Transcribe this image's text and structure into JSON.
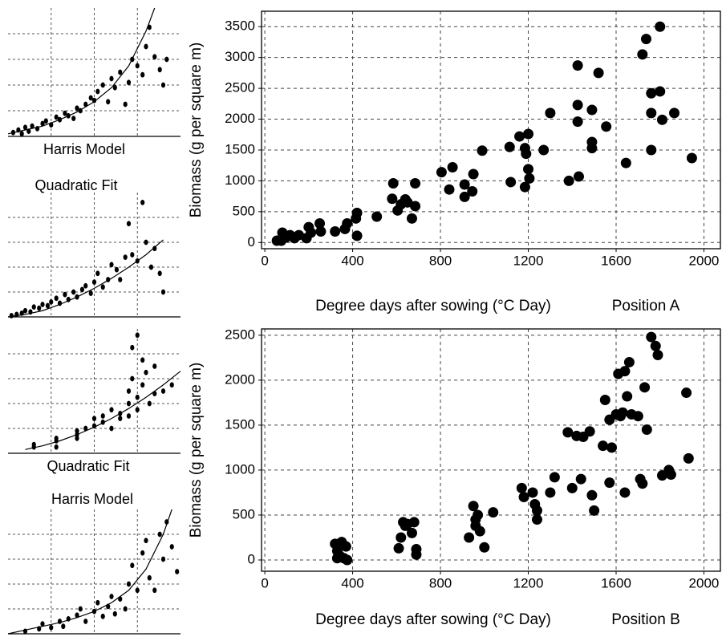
{
  "chart_data": [
    {
      "type": "scatter",
      "title": "Harris Model",
      "color": "#000000",
      "grid": true,
      "xlim": [
        0,
        100
      ],
      "ylim": [
        0,
        100
      ],
      "x": [
        3,
        6,
        8,
        10,
        12,
        14,
        17,
        20,
        22,
        25,
        28,
        30,
        33,
        35,
        38,
        40,
        42,
        45,
        48,
        50,
        52,
        55,
        58,
        60,
        62,
        65,
        68,
        70,
        72,
        75,
        78,
        80,
        82,
        85,
        88,
        90,
        92
      ],
      "y": [
        3,
        5,
        2,
        7,
        4,
        8,
        6,
        10,
        12,
        9,
        15,
        13,
        18,
        16,
        14,
        22,
        20,
        25,
        30,
        28,
        35,
        40,
        27,
        45,
        38,
        50,
        25,
        42,
        60,
        55,
        48,
        70,
        85,
        62,
        52,
        40,
        60
      ],
      "curve": {
        "x": [
          0,
          10,
          20,
          30,
          40,
          50,
          60,
          70,
          80,
          85
        ],
        "y": [
          2,
          5,
          8,
          13,
          19,
          27,
          38,
          55,
          82,
          100
        ]
      }
    },
    {
      "type": "scatter",
      "title": "Quadratic Fit",
      "color": "#000000",
      "grid": true,
      "xlim": [
        0,
        100
      ],
      "ylim": [
        0,
        100
      ],
      "x": [
        2,
        5,
        8,
        10,
        13,
        15,
        18,
        20,
        23,
        25,
        28,
        30,
        33,
        35,
        38,
        40,
        43,
        45,
        48,
        50,
        52,
        55,
        58,
        60,
        63,
        65,
        68,
        70,
        72,
        75,
        78,
        80,
        83,
        85,
        88,
        90
      ],
      "y": [
        1,
        2,
        3,
        5,
        4,
        8,
        7,
        10,
        9,
        12,
        15,
        11,
        18,
        14,
        20,
        16,
        22,
        25,
        19,
        28,
        35,
        24,
        30,
        42,
        38,
        30,
        48,
        75,
        50,
        45,
        92,
        60,
        40,
        55,
        35,
        20
      ],
      "curve": {
        "x": [
          0,
          10,
          20,
          30,
          40,
          50,
          60,
          70,
          80,
          90
        ],
        "y": [
          0,
          2,
          5,
          10,
          16,
          23,
          31,
          40,
          50,
          62
        ]
      }
    },
    {
      "type": "scatter",
      "title": "Quadratic Fit",
      "color": "#000000",
      "grid": true,
      "xlim": [
        0,
        100
      ],
      "ylim": [
        0,
        100
      ],
      "x": [
        15,
        15,
        28,
        28,
        28,
        40,
        40,
        40,
        45,
        50,
        50,
        55,
        55,
        60,
        60,
        65,
        65,
        70,
        70,
        70,
        72,
        72,
        75,
        75,
        75,
        78,
        78,
        80,
        82,
        85,
        85,
        90,
        95
      ],
      "y": [
        5,
        7,
        5,
        10,
        12,
        12,
        15,
        18,
        20,
        22,
        28,
        25,
        30,
        35,
        20,
        32,
        28,
        50,
        40,
        30,
        60,
        85,
        95,
        45,
        35,
        75,
        55,
        65,
        40,
        70,
        48,
        50,
        55
      ],
      "curve": {
        "x": [
          10,
          20,
          30,
          40,
          50,
          60,
          70,
          80,
          90,
          100
        ],
        "y": [
          3,
          6,
          10,
          15,
          21,
          28,
          36,
          45,
          55,
          66
        ]
      }
    },
    {
      "type": "scatter",
      "title": "Harris Model",
      "color": "#000000",
      "grid": true,
      "xlim": [
        0,
        100
      ],
      "ylim": [
        0,
        100
      ],
      "x": [
        10,
        18,
        20,
        25,
        30,
        32,
        35,
        40,
        42,
        45,
        50,
        52,
        55,
        58,
        60,
        62,
        65,
        68,
        70,
        72,
        75,
        78,
        80,
        82,
        85,
        88,
        90,
        92,
        95,
        98
      ],
      "y": [
        2,
        4,
        8,
        5,
        10,
        6,
        12,
        15,
        20,
        10,
        18,
        25,
        14,
        22,
        30,
        16,
        28,
        20,
        40,
        55,
        35,
        65,
        75,
        45,
        35,
        80,
        60,
        90,
        70,
        50
      ],
      "curve": {
        "x": [
          0,
          10,
          20,
          30,
          40,
          50,
          60,
          70,
          80,
          90,
          95
        ],
        "y": [
          0,
          3,
          6,
          9,
          13,
          18,
          25,
          35,
          52,
          80,
          100
        ]
      }
    },
    {
      "type": "scatter",
      "y_label": "Biomass (g per square m)",
      "x_label": "Degree days after sowing (°C Day)",
      "annotation": "Position A",
      "color": "#000000",
      "grid": true,
      "xlim": [
        -15,
        2075
      ],
      "ylim": [
        -100,
        3750
      ],
      "xticks": [
        0,
        400,
        800,
        1200,
        1600,
        2000
      ],
      "yticks": [
        0,
        500,
        1000,
        1500,
        2000,
        2500,
        3000,
        3500
      ],
      "x": [
        1800,
        1737,
        1720,
        1800,
        1760,
        1760,
        1810,
        1865,
        1945,
        1760,
        1645,
        1555,
        1520,
        1490,
        1490,
        1490,
        1425,
        1425,
        1425,
        1430,
        1385,
        1300,
        1270,
        1200,
        1160,
        1185,
        1190,
        1200,
        1205,
        1185,
        1115,
        1120,
        990,
        950,
        945,
        910,
        910,
        840,
        855,
        805,
        685,
        685,
        650,
        640,
        620,
        670,
        580,
        585,
        605,
        510,
        420,
        415,
        420,
        375,
        365,
        320,
        255,
        250,
        200,
        190,
        155,
        115,
        95,
        80,
        55,
        75,
        210,
        135
      ],
      "y": [
        3500,
        3300,
        3050,
        2450,
        2420,
        2100,
        1990,
        2100,
        1370,
        1500,
        1290,
        1880,
        2750,
        2150,
        1630,
        1530,
        2870,
        2230,
        1960,
        1070,
        1000,
        2100,
        1500,
        1760,
        1720,
        1530,
        1440,
        1190,
        1040,
        900,
        1550,
        980,
        1490,
        1110,
        830,
        940,
        740,
        860,
        1220,
        1140,
        590,
        960,
        650,
        700,
        620,
        390,
        710,
        960,
        520,
        420,
        480,
        390,
        110,
        310,
        220,
        180,
        180,
        310,
        250,
        70,
        120,
        120,
        80,
        160,
        30,
        30,
        160,
        70
      ]
    },
    {
      "type": "scatter",
      "y_label": "Biomass (g per square m)",
      "x_label": "Degree days after sowing (°C Day)",
      "annotation": "Position B",
      "color": "#000000",
      "grid": true,
      "xlim": [
        -15,
        2075
      ],
      "ylim": [
        -125,
        2570
      ],
      "xticks": [
        0,
        400,
        800,
        1200,
        1600,
        2000
      ],
      "yticks": [
        0,
        500,
        1000,
        1500,
        2000,
        2500
      ],
      "x": [
        320,
        330,
        340,
        350,
        360,
        370,
        375,
        330,
        610,
        620,
        630,
        640,
        650,
        670,
        680,
        690,
        690,
        930,
        950,
        960,
        960,
        970,
        980,
        1000,
        1040,
        1170,
        1180,
        1220,
        1230,
        1240,
        1240,
        1300,
        1320,
        1380,
        1400,
        1420,
        1440,
        1450,
        1480,
        1490,
        1500,
        1540,
        1550,
        1570,
        1570,
        1580,
        1600,
        1610,
        1620,
        1630,
        1640,
        1640,
        1650,
        1660,
        1670,
        1700,
        1710,
        1720,
        1730,
        1740,
        1760,
        1780,
        1790,
        1810,
        1840,
        1850,
        1920,
        1930
      ],
      "y": [
        180,
        100,
        50,
        200,
        20,
        150,
        0,
        20,
        130,
        250,
        420,
        380,
        400,
        300,
        420,
        60,
        120,
        250,
        600,
        450,
        380,
        500,
        320,
        140,
        530,
        800,
        700,
        750,
        620,
        450,
        550,
        750,
        920,
        1420,
        800,
        1380,
        900,
        1370,
        1430,
        720,
        550,
        1270,
        1780,
        1560,
        860,
        1250,
        1620,
        2070,
        1600,
        1640,
        2100,
        750,
        1820,
        2200,
        1620,
        1600,
        900,
        850,
        1920,
        1450,
        2480,
        2380,
        2280,
        940,
        1000,
        950,
        1860,
        1130
      ]
    }
  ]
}
